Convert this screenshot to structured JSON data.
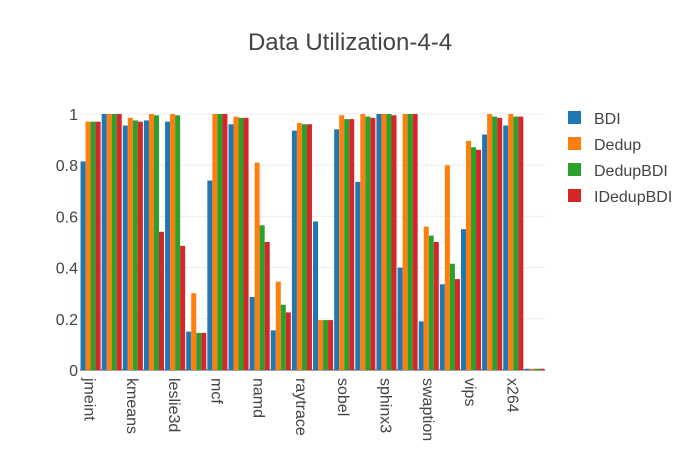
{
  "chart_data": {
    "type": "bar",
    "title": "Data Utilization-4-4",
    "xlabel": "",
    "ylabel": "",
    "ylim": [
      0,
      1.0
    ],
    "yticks": [
      0,
      0.2,
      0.4,
      0.6,
      0.8,
      1
    ],
    "grid": true,
    "legend_position": "right",
    "categories": [
      "jmeint",
      "",
      "kmeans",
      "",
      "leslie3d",
      "",
      "mcf",
      "",
      "namd",
      "",
      "raytrace",
      "",
      "sobel",
      "",
      "sphinx3",
      "",
      "swaption",
      "",
      "vips",
      "",
      "x264",
      ""
    ],
    "series": [
      {
        "name": "BDI",
        "color": "#1f77b4",
        "values": [
          0.815,
          1.0,
          0.955,
          0.975,
          0.97,
          0.15,
          0.74,
          0.96,
          0.285,
          0.155,
          0.935,
          0.58,
          0.94,
          0.735,
          1.0,
          0.4,
          0.19,
          0.335,
          0.55,
          0.92,
          0.955,
          0.005
        ]
      },
      {
        "name": "Dedup",
        "color": "#ff7f0e",
        "values": [
          0.97,
          1.0,
          0.985,
          1.0,
          1.0,
          0.3,
          1.0,
          0.99,
          0.81,
          0.345,
          0.965,
          0.195,
          0.995,
          1.0,
          1.0,
          1.0,
          0.56,
          0.8,
          0.895,
          1.0,
          1.0,
          0.005
        ]
      },
      {
        "name": "DedupBDI",
        "color": "#2ca02c",
        "values": [
          0.97,
          1.0,
          0.975,
          0.995,
          0.995,
          0.145,
          1.0,
          0.985,
          0.565,
          0.255,
          0.96,
          0.195,
          0.98,
          0.99,
          1.0,
          1.0,
          0.525,
          0.415,
          0.87,
          0.99,
          0.99,
          0.005
        ]
      },
      {
        "name": "IDedupBDI",
        "color": "#d62728",
        "values": [
          0.97,
          1.0,
          0.97,
          0.54,
          0.485,
          0.145,
          1.0,
          0.985,
          0.5,
          0.225,
          0.96,
          0.195,
          0.98,
          0.985,
          0.995,
          1.0,
          0.5,
          0.355,
          0.86,
          0.985,
          0.99,
          0.005
        ]
      }
    ]
  }
}
